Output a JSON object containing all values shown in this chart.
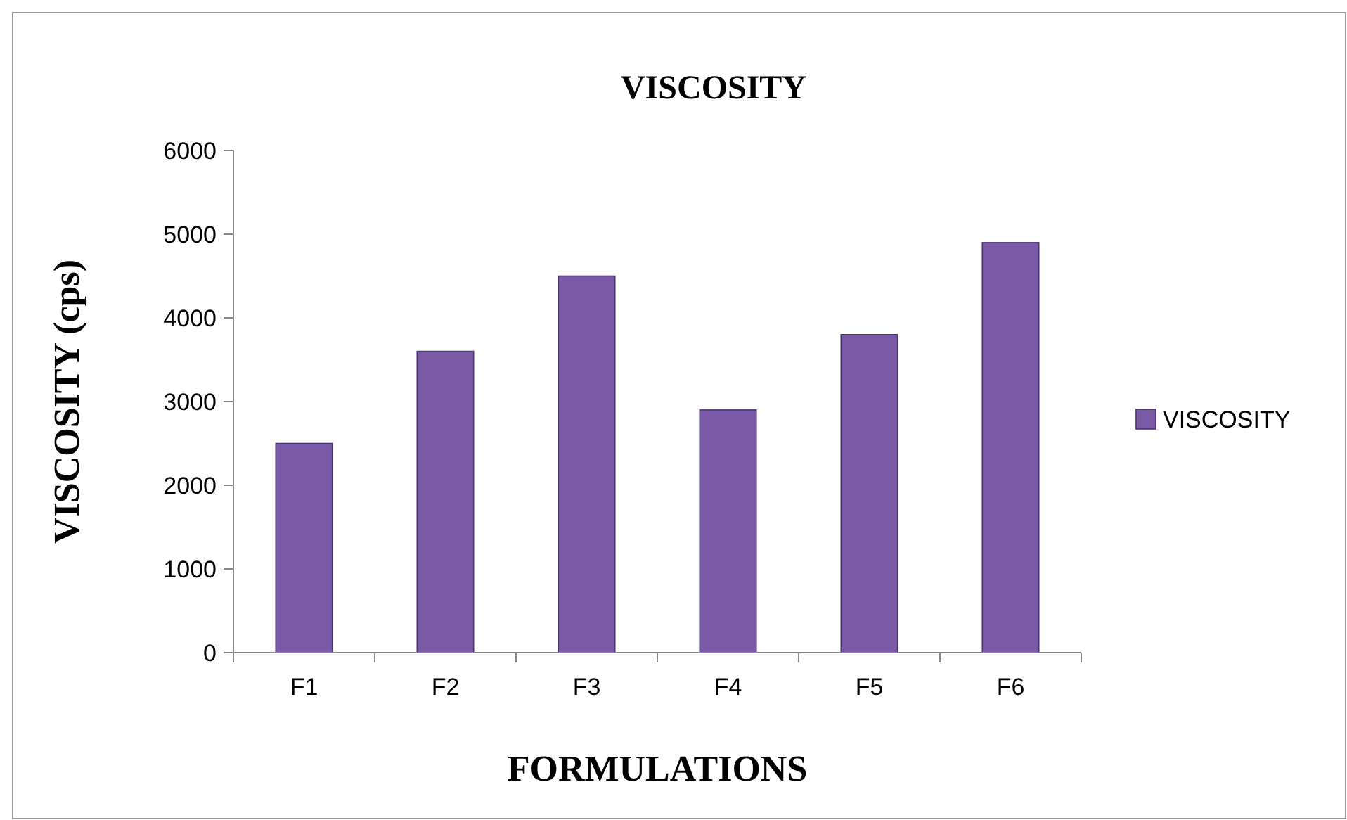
{
  "chart_data": {
    "type": "bar",
    "title": "VISCOSITY",
    "xlabel": "FORMULATIONS",
    "ylabel": "VISCOSITY (cps)",
    "categories": [
      "F1",
      "F2",
      "F3",
      "F4",
      "F5",
      "F6"
    ],
    "series": [
      {
        "name": "VISCOSITY",
        "color": "#7a5aa6",
        "values": [
          2500,
          3600,
          4500,
          2900,
          3800,
          4900
        ]
      }
    ],
    "ylim": [
      0,
      6000
    ],
    "yticks": [
      0,
      1000,
      2000,
      3000,
      4000,
      5000,
      6000
    ],
    "grid": false,
    "legend": "right"
  }
}
